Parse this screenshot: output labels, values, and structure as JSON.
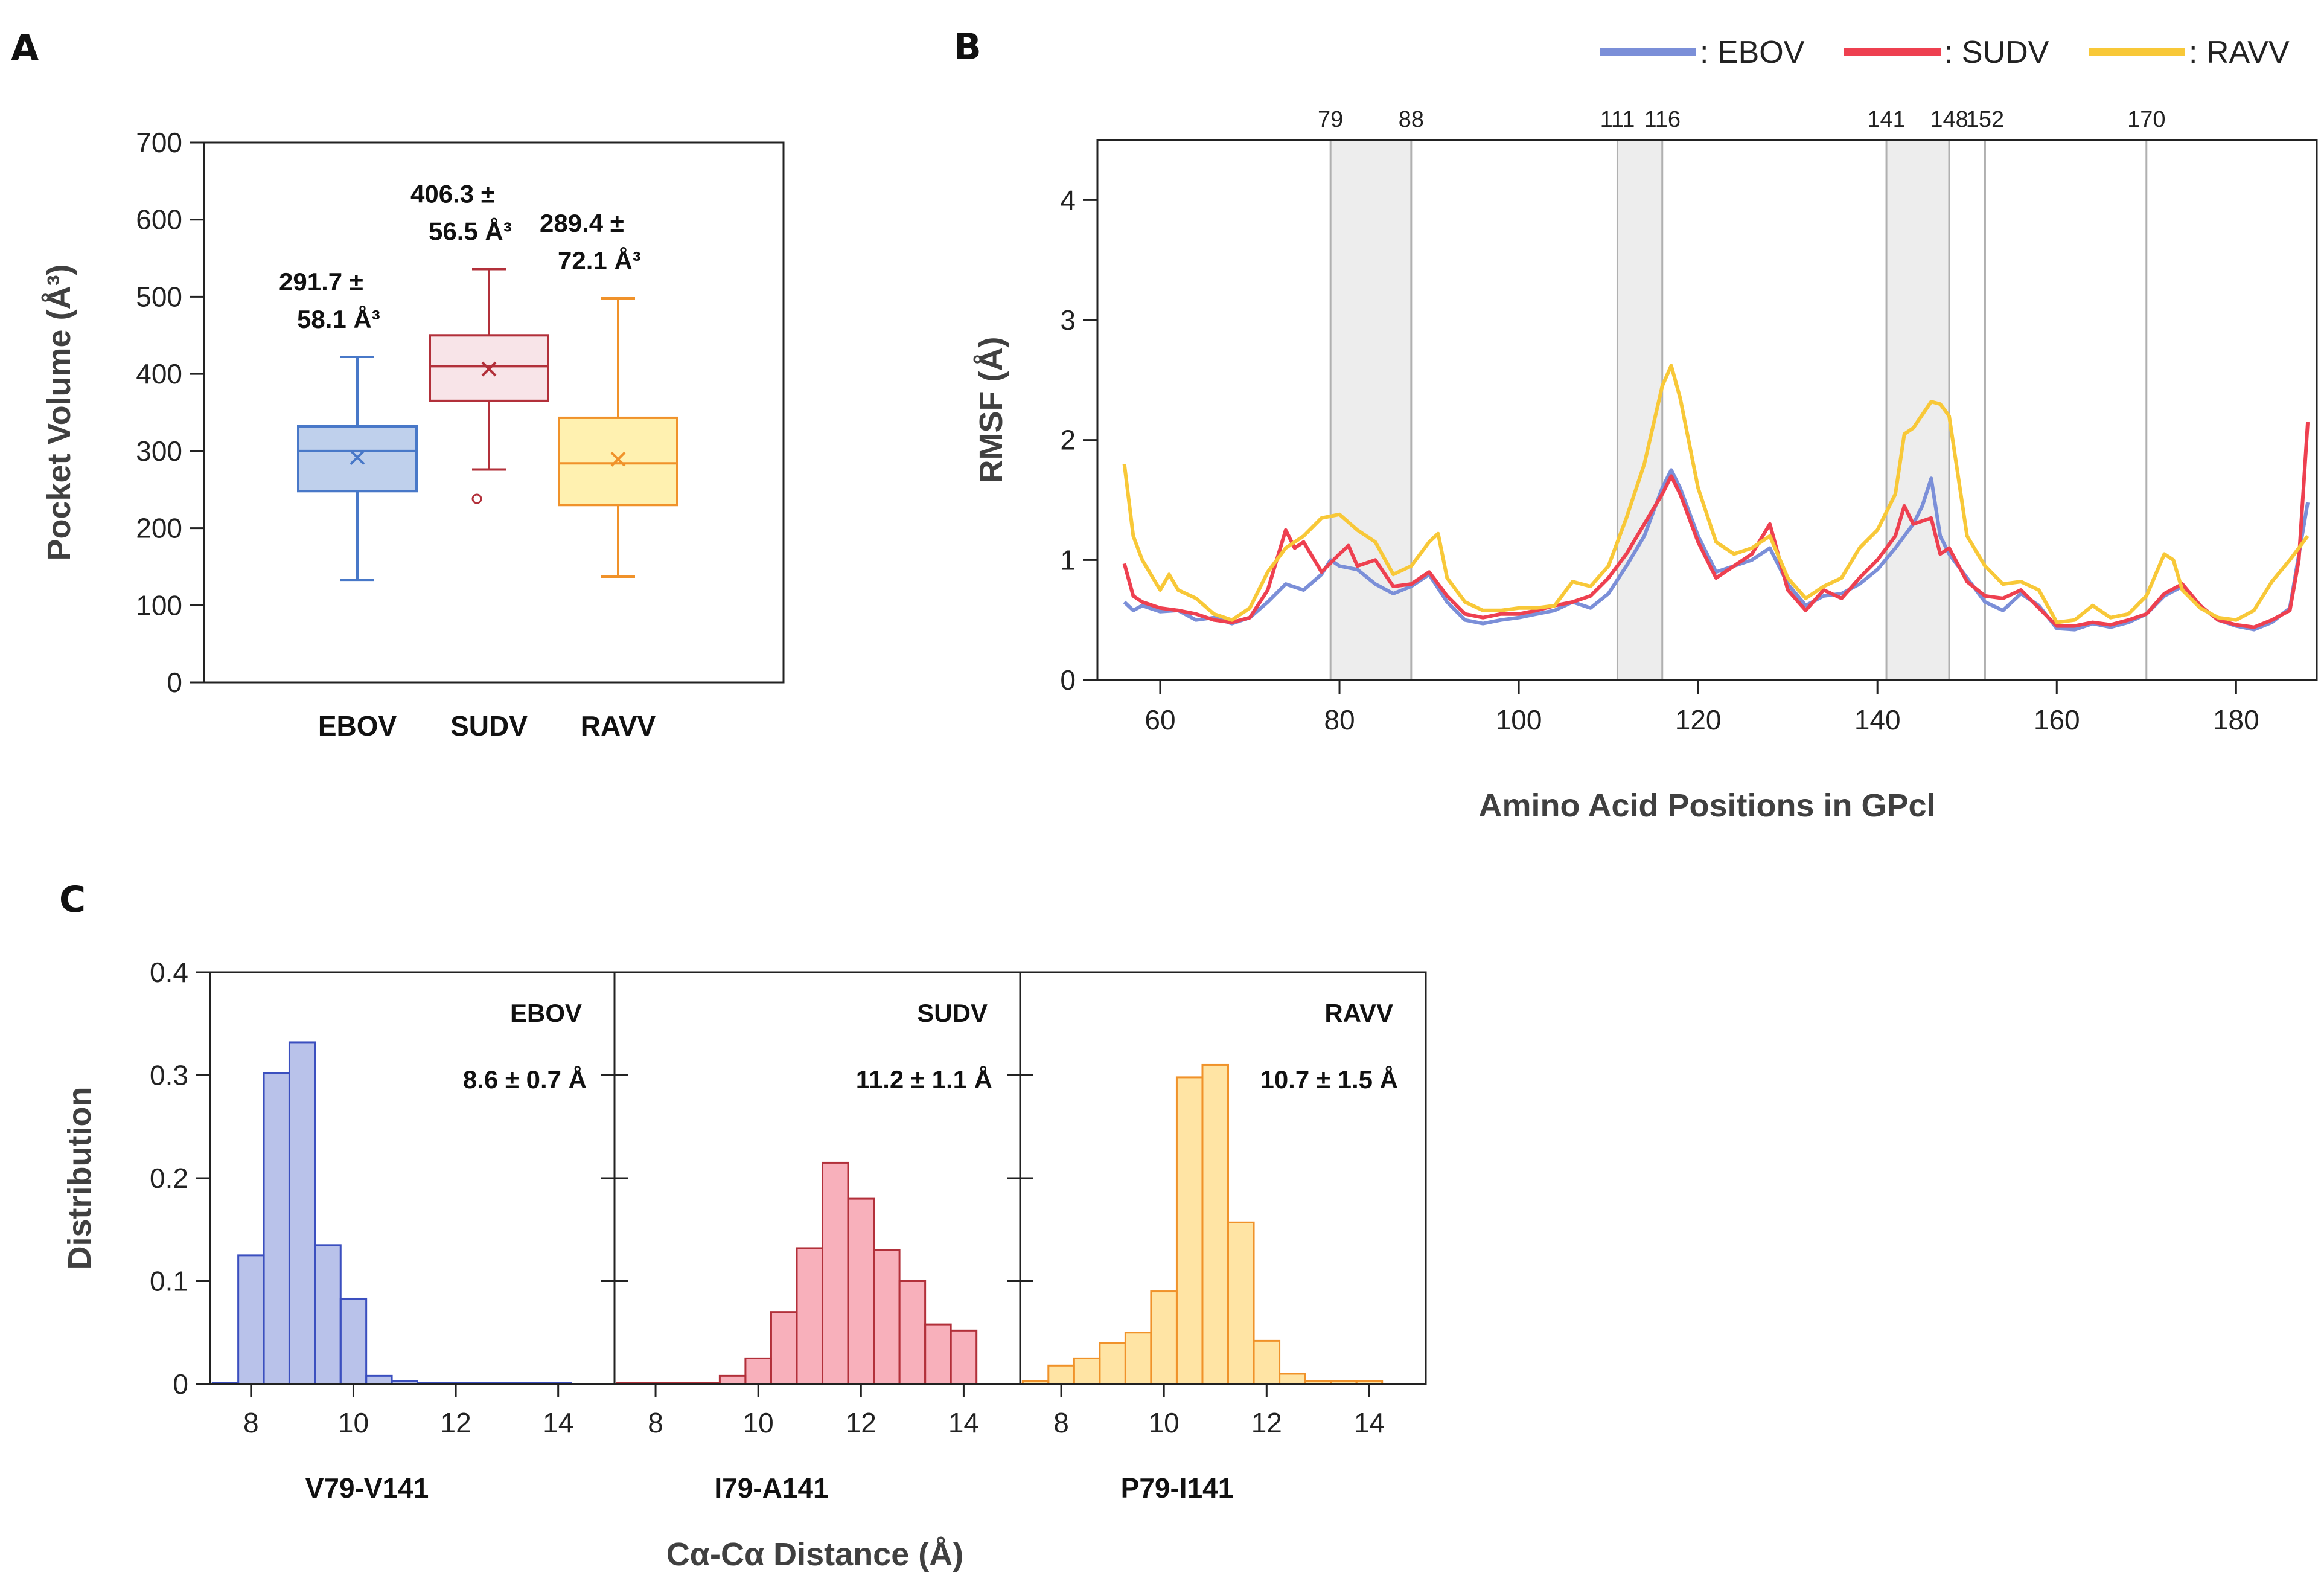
{
  "panels": {
    "A": "A",
    "B": "B",
    "C": "C"
  },
  "colors": {
    "EBOV": "#4878C8",
    "EBOV_hist": "#3B4FBF",
    "EBOV_line": "#7B8FD8",
    "SUDV": "#B2303A",
    "SUDV_line": "#EE4050",
    "RAVV": "#F0922A",
    "RAVV_line": "#F8C838",
    "shade": "#EDEDED"
  },
  "chart_data": [
    {
      "id": "A",
      "type": "box",
      "ylabel": "Pocket Volume (Å³)",
      "ylim": [
        0,
        700
      ],
      "yticks": [
        0,
        100,
        200,
        300,
        400,
        500,
        600,
        700
      ],
      "categories": [
        "EBOV",
        "SUDV",
        "RAVV"
      ],
      "boxes": [
        {
          "name": "EBOV",
          "min": 133,
          "q1": 248,
          "median": 300,
          "q3": 332,
          "max": 422,
          "mean": 291.7,
          "outliers": [],
          "annotation_line1": "291.7 ±",
          "annotation_line2": "58.1 Å³"
        },
        {
          "name": "SUDV",
          "min": 276,
          "q1": 365,
          "median": 410,
          "q3": 450,
          "max": 536,
          "mean": 406.3,
          "outliers": [
            238
          ],
          "annotation_line1": "406.3 ±",
          "annotation_line2": "56.5 Å³"
        },
        {
          "name": "RAVV",
          "min": 137,
          "q1": 230,
          "median": 284,
          "q3": 343,
          "max": 498,
          "mean": 289.4,
          "outliers": [],
          "annotation_line1": "289.4 ±",
          "annotation_line2": "72.1 Å³"
        }
      ]
    },
    {
      "id": "B",
      "type": "line",
      "xlabel": "Amino Acid Positions in GPcl",
      "ylabel": "RMSF (Å)",
      "xlim": [
        53,
        189
      ],
      "ylim": [
        0,
        4.5
      ],
      "xticks": [
        60,
        80,
        100,
        120,
        140,
        160,
        180
      ],
      "yticks": [
        0,
        1,
        2,
        3,
        4
      ],
      "shaded_regions": [
        [
          79,
          88
        ],
        [
          111,
          116
        ],
        [
          141,
          148
        ]
      ],
      "vlines": [
        79,
        88,
        111,
        116,
        141,
        148,
        152,
        170
      ],
      "legend": [
        {
          "name": "EBOV",
          "label": ": EBOV"
        },
        {
          "name": "SUDV",
          "label": ": SUDV"
        },
        {
          "name": "RAVV",
          "label": ": RAVV"
        }
      ],
      "series": [
        {
          "name": "EBOV",
          "x": [
            56,
            57,
            58,
            60,
            62,
            64,
            66,
            68,
            70,
            72,
            74,
            76,
            78,
            79,
            80,
            82,
            84,
            86,
            88,
            90,
            92,
            94,
            96,
            98,
            100,
            102,
            104,
            106,
            108,
            110,
            112,
            114,
            116,
            117,
            118,
            120,
            122,
            124,
            126,
            128,
            130,
            132,
            134,
            136,
            138,
            140,
            142,
            144,
            145,
            146,
            147,
            148,
            150,
            152,
            154,
            156,
            158,
            160,
            162,
            164,
            166,
            168,
            170,
            172,
            174,
            176,
            178,
            180,
            182,
            184,
            186,
            188
          ],
          "y": [
            0.65,
            0.58,
            0.62,
            0.57,
            0.58,
            0.5,
            0.52,
            0.47,
            0.52,
            0.65,
            0.8,
            0.75,
            0.88,
            1.0,
            0.95,
            0.92,
            0.8,
            0.72,
            0.78,
            0.88,
            0.65,
            0.5,
            0.47,
            0.5,
            0.52,
            0.55,
            0.58,
            0.65,
            0.6,
            0.72,
            0.95,
            1.2,
            1.6,
            1.75,
            1.6,
            1.2,
            0.9,
            0.95,
            1.0,
            1.1,
            0.8,
            0.62,
            0.7,
            0.72,
            0.8,
            0.92,
            1.1,
            1.3,
            1.45,
            1.68,
            1.2,
            1.05,
            0.85,
            0.65,
            0.58,
            0.72,
            0.62,
            0.43,
            0.42,
            0.47,
            0.44,
            0.48,
            0.55,
            0.7,
            0.78,
            0.62,
            0.5,
            0.45,
            0.42,
            0.48,
            0.6,
            1.48
          ]
        },
        {
          "name": "SUDV",
          "x": [
            56,
            57,
            58,
            60,
            62,
            64,
            66,
            68,
            70,
            72,
            74,
            75,
            76,
            78,
            80,
            81,
            82,
            84,
            86,
            88,
            90,
            92,
            94,
            96,
            98,
            100,
            102,
            104,
            106,
            108,
            110,
            112,
            114,
            116,
            117,
            118,
            120,
            122,
            124,
            126,
            128,
            130,
            132,
            134,
            136,
            138,
            140,
            142,
            143,
            144,
            146,
            147,
            148,
            150,
            152,
            154,
            156,
            158,
            160,
            162,
            164,
            166,
            168,
            170,
            172,
            174,
            176,
            178,
            180,
            182,
            184,
            186,
            187,
            188
          ],
          "y": [
            0.97,
            0.7,
            0.65,
            0.6,
            0.58,
            0.55,
            0.5,
            0.48,
            0.52,
            0.75,
            1.25,
            1.1,
            1.15,
            0.9,
            1.05,
            1.12,
            0.95,
            1.0,
            0.78,
            0.8,
            0.9,
            0.7,
            0.55,
            0.52,
            0.55,
            0.55,
            0.58,
            0.62,
            0.65,
            0.7,
            0.85,
            1.05,
            1.3,
            1.55,
            1.7,
            1.55,
            1.15,
            0.85,
            0.95,
            1.05,
            1.3,
            0.75,
            0.58,
            0.75,
            0.68,
            0.85,
            1.0,
            1.2,
            1.45,
            1.3,
            1.35,
            1.05,
            1.1,
            0.82,
            0.7,
            0.68,
            0.75,
            0.6,
            0.45,
            0.45,
            0.48,
            0.46,
            0.5,
            0.55,
            0.72,
            0.8,
            0.62,
            0.5,
            0.46,
            0.44,
            0.5,
            0.58,
            1.0,
            2.15
          ]
        },
        {
          "name": "RAVV",
          "x": [
            56,
            57,
            58,
            60,
            61,
            62,
            64,
            66,
            68,
            70,
            72,
            74,
            76,
            78,
            80,
            82,
            84,
            86,
            88,
            90,
            91,
            92,
            94,
            96,
            98,
            100,
            102,
            104,
            106,
            108,
            110,
            112,
            114,
            116,
            117,
            118,
            120,
            122,
            124,
            126,
            128,
            130,
            132,
            134,
            136,
            138,
            140,
            142,
            143,
            144,
            146,
            147,
            148,
            150,
            152,
            154,
            156,
            158,
            160,
            162,
            164,
            166,
            168,
            170,
            172,
            173,
            174,
            176,
            178,
            180,
            182,
            184,
            186,
            188
          ],
          "y": [
            1.8,
            1.2,
            1.0,
            0.75,
            0.88,
            0.75,
            0.68,
            0.55,
            0.5,
            0.6,
            0.9,
            1.1,
            1.2,
            1.35,
            1.38,
            1.25,
            1.15,
            0.88,
            0.95,
            1.15,
            1.22,
            0.85,
            0.65,
            0.58,
            0.58,
            0.6,
            0.6,
            0.62,
            0.82,
            0.78,
            0.95,
            1.35,
            1.8,
            2.45,
            2.62,
            2.35,
            1.6,
            1.15,
            1.05,
            1.1,
            1.2,
            0.85,
            0.68,
            0.78,
            0.85,
            1.1,
            1.25,
            1.55,
            2.05,
            2.1,
            2.32,
            2.3,
            2.2,
            1.2,
            0.95,
            0.8,
            0.82,
            0.75,
            0.48,
            0.5,
            0.62,
            0.52,
            0.55,
            0.7,
            1.05,
            1.0,
            0.75,
            0.6,
            0.52,
            0.5,
            0.58,
            0.82,
            1.0,
            1.2
          ]
        }
      ]
    },
    {
      "id": "C",
      "type": "histogram",
      "ylabel": "Distribution",
      "xlabel": "Cα-Cα Distance (Å)",
      "ylim": [
        0,
        0.4
      ],
      "yticks": [
        0,
        0.1,
        0.2,
        0.3,
        0.4
      ],
      "xlim": [
        7.2,
        15.1
      ],
      "xticks": [
        8,
        10,
        12,
        14
      ],
      "bin_width": 0.5,
      "subplots": [
        {
          "name": "EBOV",
          "pair_label": "V79-V141",
          "annotation": "8.6 ± 0.7 Å",
          "bin_starts": [
            7.25,
            7.75,
            8.25,
            8.75,
            9.25,
            9.75,
            10.25,
            10.75,
            11.25,
            11.75,
            12.25,
            12.75,
            13.25,
            13.75
          ],
          "values": [
            0.001,
            0.125,
            0.302,
            0.332,
            0.135,
            0.083,
            0.008,
            0.003,
            0.001,
            0.001,
            0.001,
            0.001,
            0.001,
            0.001
          ]
        },
        {
          "name": "SUDV",
          "pair_label": "I79-A141",
          "annotation": "11.2 ± 1.1 Å",
          "bin_starts": [
            7.25,
            7.75,
            8.25,
            8.75,
            9.25,
            9.75,
            10.25,
            10.75,
            11.25,
            11.75,
            12.25,
            12.75,
            13.25,
            13.75
          ],
          "values": [
            0.001,
            0.001,
            0.001,
            0.001,
            0.008,
            0.025,
            0.07,
            0.132,
            0.215,
            0.18,
            0.13,
            0.1,
            0.058,
            0.052
          ]
        },
        {
          "name": "RAVV",
          "pair_label": "P79-I141",
          "annotation": "10.7 ± 1.5 Å",
          "bin_starts": [
            7.25,
            7.75,
            8.25,
            8.75,
            9.25,
            9.75,
            10.25,
            10.75,
            11.25,
            11.75,
            12.25,
            12.75,
            13.25,
            13.75
          ],
          "values": [
            0.003,
            0.018,
            0.025,
            0.04,
            0.05,
            0.09,
            0.298,
            0.31,
            0.157,
            0.042,
            0.01,
            0.003,
            0.003,
            0.003
          ]
        }
      ]
    }
  ]
}
